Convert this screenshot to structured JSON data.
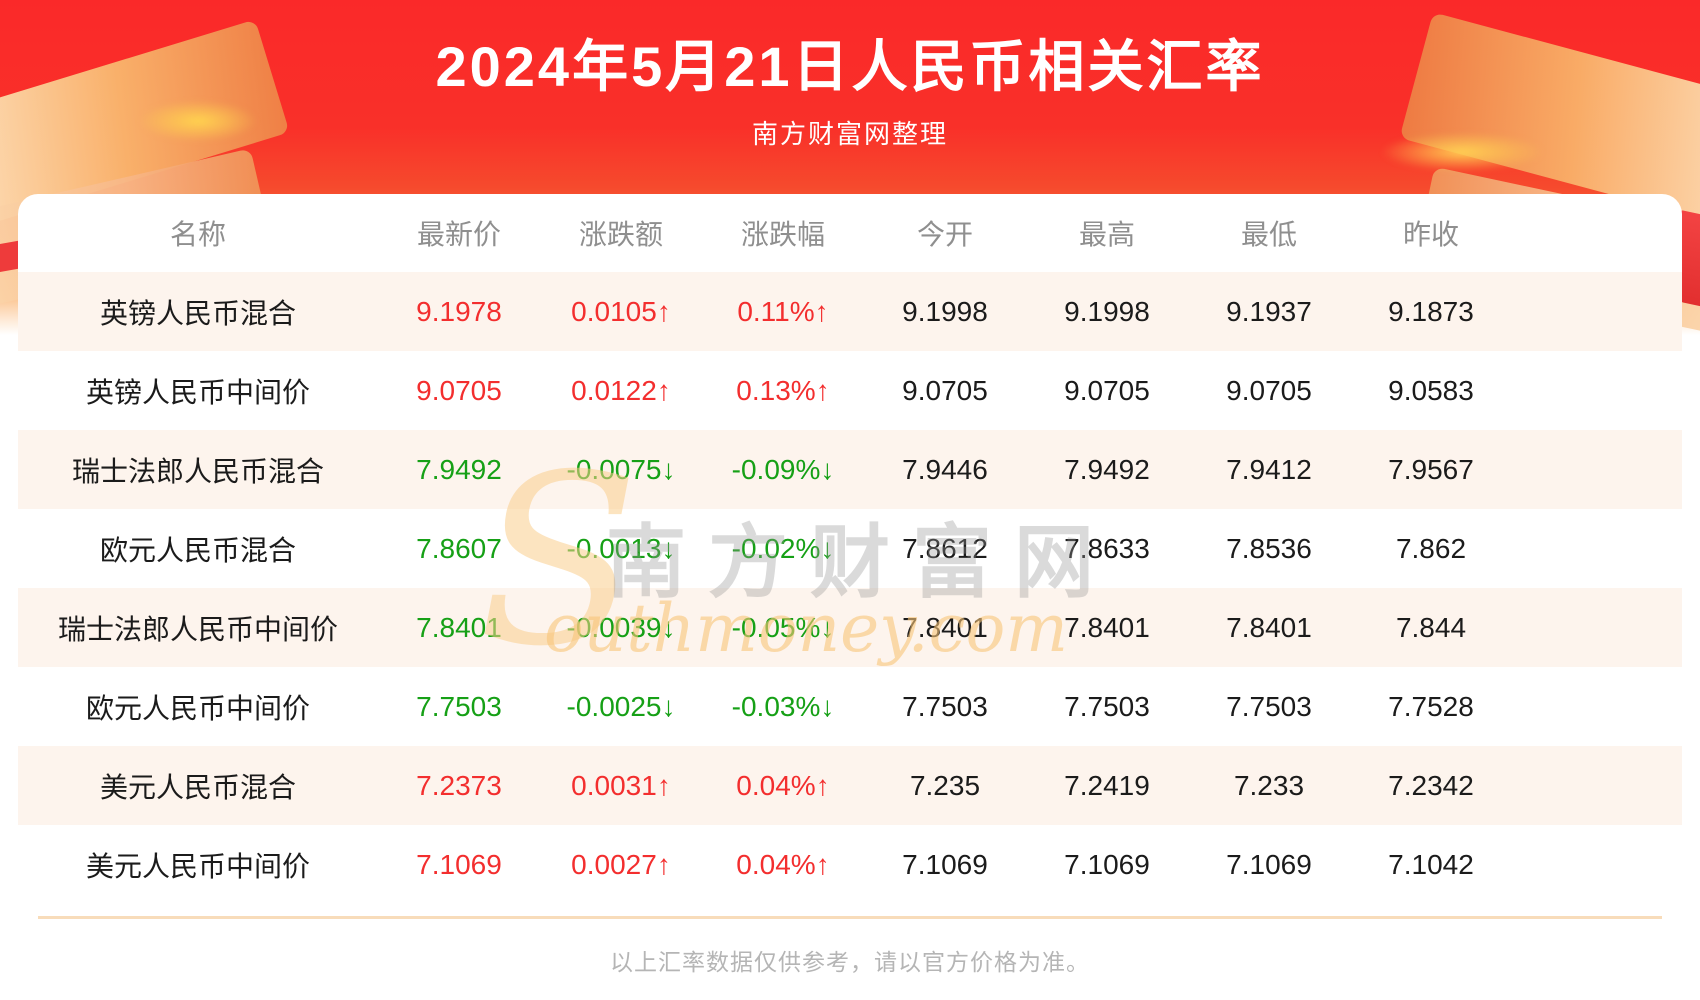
{
  "title": "2024年5月21日人民币相关汇率",
  "subtitle": "南方财富网整理",
  "watermark": {
    "initial": "S",
    "cn": "南方财富网",
    "en": "outhmoney.com"
  },
  "table": {
    "columns": [
      "名称",
      "最新价",
      "涨跌额",
      "涨跌幅",
      "今开",
      "最高",
      "最低",
      "昨收"
    ],
    "rows": [
      {
        "name": "英镑人民币混合",
        "latest": "9.1978",
        "change": "0.0105↑",
        "change_pct": "0.11%↑",
        "open": "9.1998",
        "high": "9.1998",
        "low": "9.1937",
        "prev_close": "9.1873",
        "trend": "up"
      },
      {
        "name": "英镑人民币中间价",
        "latest": "9.0705",
        "change": "0.0122↑",
        "change_pct": "0.13%↑",
        "open": "9.0705",
        "high": "9.0705",
        "low": "9.0705",
        "prev_close": "9.0583",
        "trend": "up"
      },
      {
        "name": "瑞士法郎人民币混合",
        "latest": "7.9492",
        "change": "-0.0075↓",
        "change_pct": "-0.09%↓",
        "open": "7.9446",
        "high": "7.9492",
        "low": "7.9412",
        "prev_close": "7.9567",
        "trend": "down"
      },
      {
        "name": "欧元人民币混合",
        "latest": "7.8607",
        "change": "-0.0013↓",
        "change_pct": "-0.02%↓",
        "open": "7.8612",
        "high": "7.8633",
        "low": "7.8536",
        "prev_close": "7.862",
        "trend": "down"
      },
      {
        "name": "瑞士法郎人民币中间价",
        "latest": "7.8401",
        "change": "-0.0039↓",
        "change_pct": "-0.05%↓",
        "open": "7.8401",
        "high": "7.8401",
        "low": "7.8401",
        "prev_close": "7.844",
        "trend": "down"
      },
      {
        "name": "欧元人民币中间价",
        "latest": "7.7503",
        "change": "-0.0025↓",
        "change_pct": "-0.03%↓",
        "open": "7.7503",
        "high": "7.7503",
        "low": "7.7503",
        "prev_close": "7.7528",
        "trend": "down"
      },
      {
        "name": "美元人民币混合",
        "latest": "7.2373",
        "change": "0.0031↑",
        "change_pct": "0.04%↑",
        "open": "7.235",
        "high": "7.2419",
        "low": "7.233",
        "prev_close": "7.2342",
        "trend": "up"
      },
      {
        "name": "美元人民币中间价",
        "latest": "7.1069",
        "change": "0.0027↑",
        "change_pct": "0.04%↑",
        "open": "7.1069",
        "high": "7.1069",
        "low": "7.1069",
        "prev_close": "7.1042",
        "trend": "up"
      }
    ]
  },
  "footer": {
    "disclaimer": "以上汇率数据仅供参考，请以官方价格为准。"
  },
  "colors": {
    "banner_red": "#f93029",
    "up_red": "#f32e2e",
    "down_green": "#16a016",
    "alt_row_bg": "#fdf4ed",
    "divider": "#f8dcba",
    "header_text": "#8f8f8f",
    "footer_text": "#b5b5b5"
  }
}
